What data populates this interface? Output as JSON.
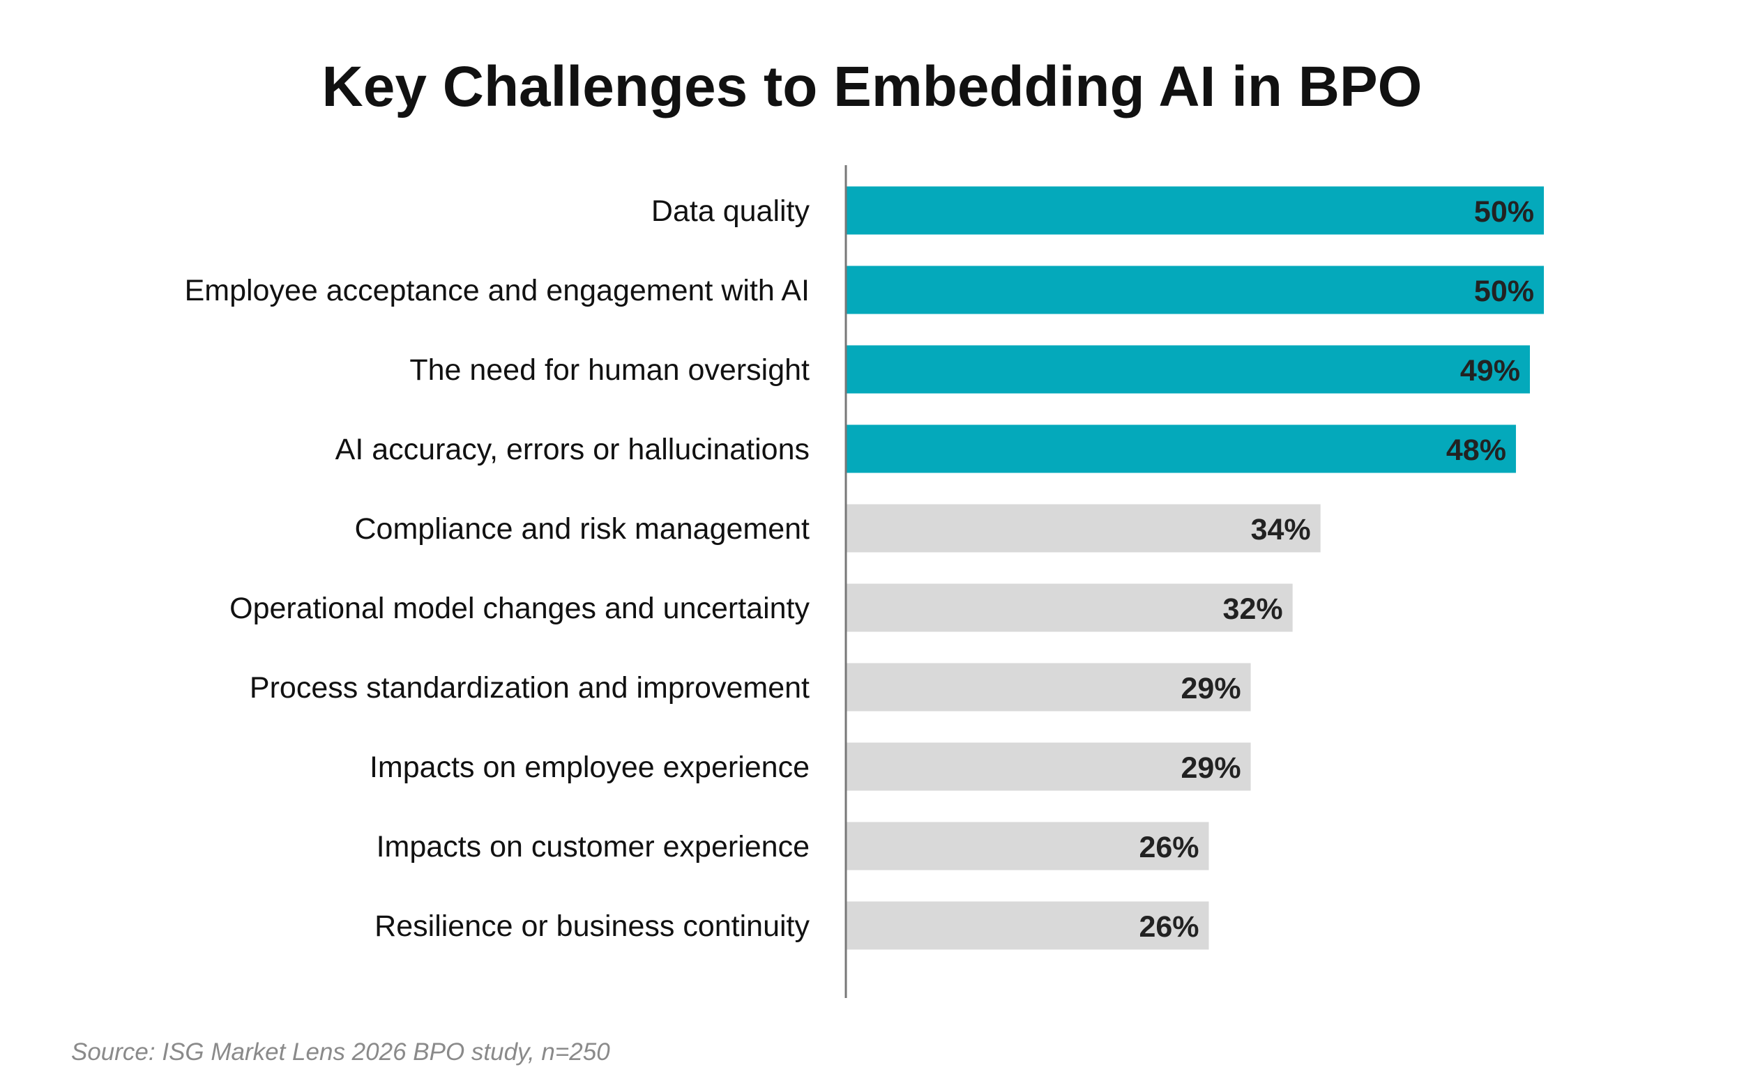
{
  "chart_data": {
    "type": "bar",
    "orientation": "horizontal",
    "title": "Key Challenges to Embedding AI in BPO",
    "categories": [
      "Data quality",
      "Employee acceptance and engagement with AI",
      "The need for human oversight",
      "AI accuracy, errors or hallucinations",
      "Compliance and risk management",
      "Operational model changes and uncertainty",
      "Process standardization and improvement",
      "Impacts on employee experience",
      "Impacts on customer experience",
      "Resilience or business continuity"
    ],
    "values": [
      50,
      50,
      49,
      48,
      34,
      32,
      29,
      29,
      26,
      26
    ],
    "value_labels": [
      "50%",
      "50%",
      "49%",
      "48%",
      "34%",
      "32%",
      "29%",
      "29%",
      "26%",
      "26%"
    ],
    "highlighted_count": 4,
    "colors": {
      "highlight": "#04a9bb",
      "default": "#d9d9d9",
      "axis": "#777777",
      "label": "#222222"
    },
    "xlim": [
      0,
      55
    ],
    "grid": false,
    "xlabel": "",
    "ylabel": ""
  },
  "source": "Source: ISG Market Lens 2026 BPO study, n=250"
}
